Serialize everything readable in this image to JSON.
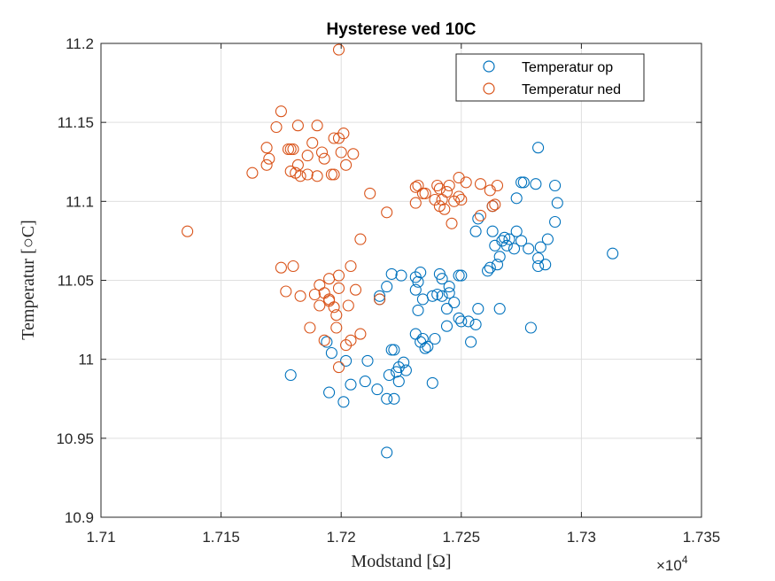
{
  "chart_data": {
    "type": "scatter",
    "title": "Hysterese ved 10C",
    "xlabel": "Modstand [Ω]",
    "ylabel": "Temperatur [○C]",
    "x_exponent_label": "×10",
    "x_exponent_power": "4",
    "x_scale": 10000,
    "xlim": [
      1.71,
      1.735
    ],
    "ylim": [
      10.9,
      11.2
    ],
    "x_ticks": [
      "1.71",
      "1.715",
      "1.72",
      "1.725",
      "1.73",
      "1.735"
    ],
    "y_ticks": [
      "10.9",
      "10.95",
      "11",
      "11.05",
      "11.1",
      "11.15",
      "11.2"
    ],
    "grid": true,
    "legend_position": "top-right",
    "series": [
      {
        "name": "Temperatur op",
        "color": "#0072BD",
        "points": [
          [
            17179,
            10.99
          ],
          [
            17194,
            11.011
          ],
          [
            17195,
            10.979
          ],
          [
            17196,
            11.004
          ],
          [
            17201,
            10.973
          ],
          [
            17202,
            10.999
          ],
          [
            17204,
            10.984
          ],
          [
            17210,
            10.986
          ],
          [
            17211,
            10.999
          ],
          [
            17215,
            10.981
          ],
          [
            17216,
            11.038
          ],
          [
            17216,
            11.04
          ],
          [
            17219,
            11.046
          ],
          [
            17219,
            10.975
          ],
          [
            17219,
            10.941
          ],
          [
            17220,
            10.99
          ],
          [
            17221,
            11.006
          ],
          [
            17221,
            11.054
          ],
          [
            17222,
            11.006
          ],
          [
            17222,
            10.975
          ],
          [
            17223,
            10.992
          ],
          [
            17224,
            10.995
          ],
          [
            17224,
            10.986
          ],
          [
            17225,
            11.053
          ],
          [
            17226,
            10.998
          ],
          [
            17227,
            10.993
          ],
          [
            17231,
            11.044
          ],
          [
            17231,
            11.016
          ],
          [
            17231,
            11.052
          ],
          [
            17232,
            11.031
          ],
          [
            17232,
            11.049
          ],
          [
            17233,
            11.011
          ],
          [
            17233,
            11.055
          ],
          [
            17234,
            11.038
          ],
          [
            17234,
            11.013
          ],
          [
            17235,
            11.007
          ],
          [
            17236,
            11.008
          ],
          [
            17238,
            10.985
          ],
          [
            17238,
            11.04
          ],
          [
            17239,
            11.013
          ],
          [
            17240,
            11.041
          ],
          [
            17241,
            11.054
          ],
          [
            17242,
            11.051
          ],
          [
            17242,
            11.04
          ],
          [
            17244,
            11.032
          ],
          [
            17244,
            11.021
          ],
          [
            17245,
            11.046
          ],
          [
            17245,
            11.042
          ],
          [
            17247,
            11.036
          ],
          [
            17249,
            11.053
          ],
          [
            17249,
            11.026
          ],
          [
            17250,
            11.053
          ],
          [
            17250,
            11.024
          ],
          [
            17253,
            11.024
          ],
          [
            17254,
            11.011
          ],
          [
            17256,
            11.022
          ],
          [
            17257,
            11.032
          ],
          [
            17256,
            11.081
          ],
          [
            17257,
            11.089
          ],
          [
            17261,
            11.056
          ],
          [
            17262,
            11.058
          ],
          [
            17263,
            11.097
          ],
          [
            17263,
            11.081
          ],
          [
            17264,
            11.072
          ],
          [
            17265,
            11.06
          ],
          [
            17266,
            11.065
          ],
          [
            17266,
            11.032
          ],
          [
            17267,
            11.075
          ],
          [
            17268,
            11.077
          ],
          [
            17269,
            11.072
          ],
          [
            17270,
            11.076
          ],
          [
            17272,
            11.07
          ],
          [
            17273,
            11.081
          ],
          [
            17273,
            11.102
          ],
          [
            17275,
            11.075
          ],
          [
            17275,
            11.112
          ],
          [
            17276,
            11.112
          ],
          [
            17278,
            11.07
          ],
          [
            17279,
            11.02
          ],
          [
            17281,
            11.111
          ],
          [
            17282,
            11.134
          ],
          [
            17282,
            11.059
          ],
          [
            17282,
            11.064
          ],
          [
            17283,
            11.071
          ],
          [
            17285,
            11.06
          ],
          [
            17286,
            11.076
          ],
          [
            17289,
            11.087
          ],
          [
            17289,
            11.11
          ],
          [
            17290,
            11.099
          ],
          [
            17313,
            11.067
          ]
        ]
      },
      {
        "name": "Temperatur ned",
        "color": "#D95319",
        "points": [
          [
            17136,
            11.081
          ],
          [
            17163,
            11.118
          ],
          [
            17169,
            11.134
          ],
          [
            17169,
            11.123
          ],
          [
            17170,
            11.127
          ],
          [
            17173,
            11.147
          ],
          [
            17175,
            11.157
          ],
          [
            17175,
            11.058
          ],
          [
            17177,
            11.043
          ],
          [
            17178,
            11.133
          ],
          [
            17179,
            11.133
          ],
          [
            17179,
            11.119
          ],
          [
            17180,
            11.059
          ],
          [
            17180,
            11.133
          ],
          [
            17181,
            11.118
          ],
          [
            17182,
            11.123
          ],
          [
            17183,
            11.116
          ],
          [
            17182,
            11.148
          ],
          [
            17183,
            11.04
          ],
          [
            17186,
            11.117
          ],
          [
            17186,
            11.129
          ],
          [
            17187,
            11.02
          ],
          [
            17188,
            11.137
          ],
          [
            17189,
            11.041
          ],
          [
            17190,
            11.116
          ],
          [
            17190,
            11.148
          ],
          [
            17191,
            11.034
          ],
          [
            17191,
            11.047
          ],
          [
            17192,
            11.131
          ],
          [
            17193,
            11.012
          ],
          [
            17193,
            11.042
          ],
          [
            17193,
            11.127
          ],
          [
            17195,
            11.051
          ],
          [
            17195,
            11.038
          ],
          [
            17195,
            11.037
          ],
          [
            17196,
            11.117
          ],
          [
            17197,
            11.117
          ],
          [
            17197,
            11.033
          ],
          [
            17197,
            11.14
          ],
          [
            17198,
            11.028
          ],
          [
            17198,
            11.02
          ],
          [
            17199,
            10.995
          ],
          [
            17199,
            11.196
          ],
          [
            17199,
            11.14
          ],
          [
            17199,
            11.045
          ],
          [
            17199,
            11.053
          ],
          [
            17200,
            11.131
          ],
          [
            17201,
            11.143
          ],
          [
            17202,
            11.123
          ],
          [
            17202,
            11.009
          ],
          [
            17203,
            11.034
          ],
          [
            17204,
            11.012
          ],
          [
            17204,
            11.059
          ],
          [
            17205,
            11.13
          ],
          [
            17206,
            11.044
          ],
          [
            17208,
            11.016
          ],
          [
            17208,
            11.076
          ],
          [
            17212,
            11.105
          ],
          [
            17216,
            11.038
          ],
          [
            17219,
            11.093
          ],
          [
            17231,
            11.109
          ],
          [
            17231,
            11.099
          ],
          [
            17232,
            11.11
          ],
          [
            17234,
            11.105
          ],
          [
            17235,
            11.105
          ],
          [
            17239,
            11.101
          ],
          [
            17240,
            11.11
          ],
          [
            17241,
            11.097
          ],
          [
            17241,
            11.108
          ],
          [
            17242,
            11.101
          ],
          [
            17243,
            11.095
          ],
          [
            17244,
            11.106
          ],
          [
            17245,
            11.11
          ],
          [
            17246,
            11.086
          ],
          [
            17247,
            11.1
          ],
          [
            17249,
            11.115
          ],
          [
            17249,
            11.103
          ],
          [
            17250,
            11.101
          ],
          [
            17252,
            11.112
          ],
          [
            17258,
            11.111
          ],
          [
            17258,
            11.091
          ],
          [
            17262,
            11.107
          ],
          [
            17263,
            11.097
          ],
          [
            17264,
            11.098
          ],
          [
            17265,
            11.11
          ]
        ]
      }
    ]
  }
}
